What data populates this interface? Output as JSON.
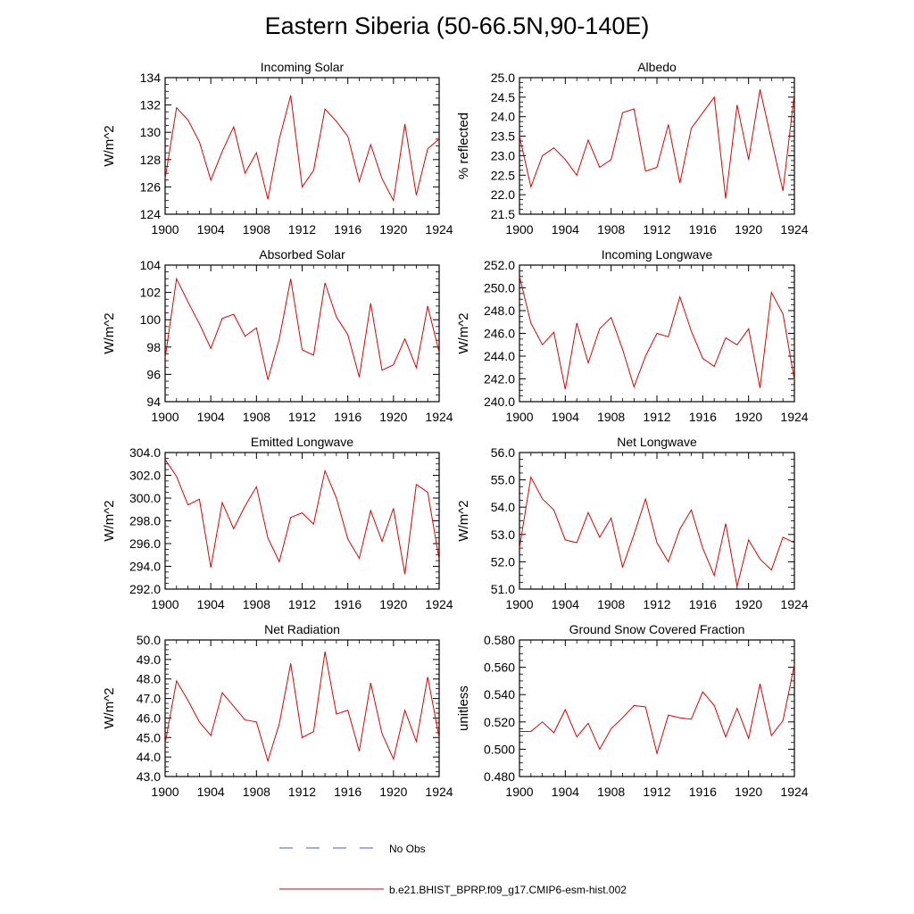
{
  "title": "Eastern Siberia (50-66.5N,90-140E)",
  "x_ticks": [
    1900,
    1904,
    1908,
    1912,
    1916,
    1920,
    1924
  ],
  "years": [
    1900,
    1901,
    1902,
    1903,
    1904,
    1905,
    1906,
    1907,
    1908,
    1909,
    1910,
    1911,
    1912,
    1913,
    1914,
    1915,
    1916,
    1917,
    1918,
    1919,
    1920,
    1921,
    1922,
    1923,
    1924
  ],
  "legend": {
    "obs_label": "No Obs",
    "model_label": "b.e21.BHIST_BPRP.f09_g17.CMIP6-esm-hist.002",
    "obs_color": "#4060c8",
    "model_color": "#e00000"
  },
  "chart_data": [
    {
      "type": "line",
      "title": "Incoming Solar",
      "ylabel": "W/m^2",
      "ylim": [
        124,
        134
      ],
      "yticks": [
        124,
        126,
        128,
        130,
        132,
        134
      ],
      "ytick_labels": [
        "124",
        "126",
        "128",
        "130",
        "132",
        "134"
      ],
      "values": [
        126.6,
        131.8,
        130.9,
        129.3,
        126.5,
        128.6,
        130.4,
        127.0,
        128.5,
        125.1,
        129.5,
        132.7,
        126.0,
        127.2,
        131.7,
        130.8,
        129.7,
        126.4,
        129.1,
        126.6,
        125.0,
        130.6,
        125.4,
        128.8,
        129.5
      ]
    },
    {
      "type": "line",
      "title": "Albedo",
      "ylabel": "% reflected",
      "ylim": [
        21.5,
        25.0
      ],
      "yticks": [
        21.5,
        22.0,
        22.5,
        23.0,
        23.5,
        24.0,
        24.5,
        25.0
      ],
      "ytick_labels": [
        "21.5",
        "22.0",
        "22.5",
        "23.0",
        "23.5",
        "24.0",
        "24.5",
        "25.0"
      ],
      "values": [
        23.5,
        22.2,
        23.0,
        23.2,
        22.9,
        22.5,
        23.4,
        22.7,
        22.9,
        24.1,
        24.2,
        22.6,
        22.7,
        23.8,
        22.3,
        23.7,
        24.1,
        24.5,
        21.9,
        24.3,
        22.9,
        24.7,
        23.4,
        22.1,
        24.6
      ]
    },
    {
      "type": "line",
      "title": "Absorbed Solar",
      "ylabel": "W/m^2",
      "ylim": [
        94,
        104
      ],
      "yticks": [
        94,
        96,
        98,
        100,
        102,
        104
      ],
      "ytick_labels": [
        "94",
        "96",
        "98",
        "100",
        "102",
        "104"
      ],
      "values": [
        97.2,
        103.0,
        101.3,
        99.7,
        97.9,
        100.1,
        100.4,
        98.8,
        99.4,
        95.6,
        98.6,
        103.0,
        97.8,
        97.4,
        102.7,
        100.2,
        98.9,
        95.8,
        101.2,
        96.3,
        96.7,
        98.6,
        96.5,
        101.0,
        97.6
      ]
    },
    {
      "type": "line",
      "title": "Incoming Longwave",
      "ylabel": "W/m^2",
      "ylim": [
        240.0,
        252.0
      ],
      "yticks": [
        240,
        242,
        244,
        246,
        248,
        250,
        252
      ],
      "ytick_labels": [
        "240.0",
        "242.0",
        "244.0",
        "246.0",
        "248.0",
        "250.0",
        "252.0"
      ],
      "values": [
        251.0,
        246.9,
        245.0,
        246.1,
        241.1,
        246.9,
        243.4,
        246.4,
        247.4,
        244.6,
        241.3,
        244.0,
        246.0,
        245.7,
        249.2,
        246.2,
        243.8,
        243.1,
        245.6,
        245.0,
        246.4,
        241.2,
        249.6,
        247.7,
        241.9
      ]
    },
    {
      "type": "line",
      "title": "Emitted Longwave",
      "ylabel": "W/m^2",
      "ylim": [
        292.0,
        304.0
      ],
      "yticks": [
        292,
        294,
        296,
        298,
        300,
        302,
        304
      ],
      "ytick_labels": [
        "292.0",
        "294.0",
        "296.0",
        "298.0",
        "300.0",
        "302.0",
        "304.0"
      ],
      "values": [
        303.4,
        301.9,
        299.4,
        299.9,
        293.9,
        299.6,
        297.3,
        299.3,
        301.0,
        296.5,
        294.4,
        298.3,
        298.7,
        297.7,
        302.4,
        300.0,
        296.4,
        294.7,
        298.9,
        296.2,
        299.1,
        293.3,
        301.2,
        300.5,
        294.6
      ]
    },
    {
      "type": "line",
      "title": "Net Longwave",
      "ylabel": "W/m^2",
      "ylim": [
        51.0,
        56.0
      ],
      "yticks": [
        51,
        52,
        53,
        54,
        55,
        56
      ],
      "ytick_labels": [
        "51.0",
        "52.0",
        "53.0",
        "54.0",
        "55.0",
        "56.0"
      ],
      "values": [
        52.5,
        55.1,
        54.3,
        53.9,
        52.8,
        52.7,
        53.8,
        52.9,
        53.6,
        51.8,
        53.0,
        54.3,
        52.7,
        52.0,
        53.2,
        53.9,
        52.5,
        51.5,
        53.4,
        51.1,
        52.8,
        52.1,
        51.7,
        52.9,
        52.7
      ]
    },
    {
      "type": "line",
      "title": "Net Radiation",
      "ylabel": "W/m^2",
      "ylim": [
        43.0,
        50.0
      ],
      "yticks": [
        43,
        44,
        45,
        46,
        47,
        48,
        49,
        50
      ],
      "ytick_labels": [
        "43.0",
        "44.0",
        "45.0",
        "46.0",
        "47.0",
        "48.0",
        "49.0",
        "50.0"
      ],
      "values": [
        44.7,
        47.9,
        46.9,
        45.8,
        45.1,
        47.3,
        46.6,
        45.9,
        45.8,
        43.8,
        45.7,
        48.8,
        45.0,
        45.3,
        49.4,
        46.2,
        46.4,
        44.3,
        47.8,
        45.2,
        43.9,
        46.4,
        44.8,
        48.1,
        45.0
      ]
    },
    {
      "type": "line",
      "title": "Ground Snow Covered Fraction",
      "ylabel": "unitless",
      "ylim": [
        0.48,
        0.58
      ],
      "yticks": [
        0.48,
        0.5,
        0.52,
        0.54,
        0.56,
        0.58
      ],
      "ytick_labels": [
        "0.480",
        "0.500",
        "0.520",
        "0.540",
        "0.560",
        "0.580"
      ],
      "values": [
        0.513,
        0.513,
        0.52,
        0.512,
        0.529,
        0.509,
        0.519,
        0.5,
        0.515,
        0.523,
        0.532,
        0.531,
        0.497,
        0.525,
        0.523,
        0.522,
        0.542,
        0.532,
        0.509,
        0.53,
        0.508,
        0.548,
        0.51,
        0.521,
        0.562
      ]
    }
  ]
}
